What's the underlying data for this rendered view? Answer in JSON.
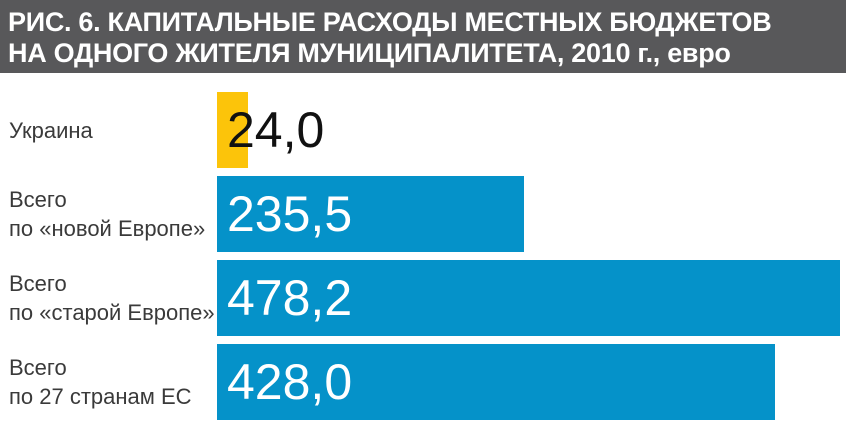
{
  "title": {
    "line1": "РИС. 6. КАПИТАЛЬНЫЕ РАСХОДЫ МЕСТНЫХ БЮДЖЕТОВ",
    "line2": "НА ОДНОГО ЖИТЕЛЯ МУНИЦИПАЛИТЕТА, 2010 г., евро"
  },
  "colors": {
    "header_bg": "#58585a",
    "bar_blue": "#0592c9",
    "bar_yellow": "#fcc40a",
    "label_text": "#3a3a3a",
    "value_on_blue": "#ffffff",
    "value_on_yellow": "#111111"
  },
  "chart_data": {
    "type": "bar",
    "orientation": "horizontal",
    "title": "РИС. 6. КАПИТАЛЬНЫЕ РАСХОДЫ МЕСТНЫХ БЮДЖЕТОВ НА ОДНОГО ЖИТЕЛЯ МУНИЦИПАЛИТЕТА, 2010 г., евро",
    "unit": "евро",
    "categories": [
      "Украина",
      "Всего по «новой Европе»",
      "Всего по «старой Европе»",
      "Всего по 27 странам ЕС"
    ],
    "values": [
      24.0,
      235.5,
      478.2,
      428.0
    ],
    "value_labels": [
      "24,0",
      "235,5",
      "478,2",
      "428,0"
    ],
    "xlim": [
      0,
      480
    ],
    "grid": false,
    "legend": false
  },
  "rows": [
    {
      "label_lines": [
        "Украина"
      ],
      "value": 24.0,
      "value_label": "24,0",
      "bar_color": "#fcc40a",
      "value_color": "#111111"
    },
    {
      "label_lines": [
        "Всего",
        "по «новой Европе»"
      ],
      "value": 235.5,
      "value_label": "235,5",
      "bar_color": "#0592c9",
      "value_color": "#ffffff"
    },
    {
      "label_lines": [
        "Всего",
        "по «старой Европе»"
      ],
      "value": 478.2,
      "value_label": "478,2",
      "bar_color": "#0592c9",
      "value_color": "#ffffff"
    },
    {
      "label_lines": [
        "Всего",
        "по 27 странам ЕС"
      ],
      "value": 428.0,
      "value_label": "428,0",
      "bar_color": "#0592c9",
      "value_color": "#ffffff"
    }
  ]
}
